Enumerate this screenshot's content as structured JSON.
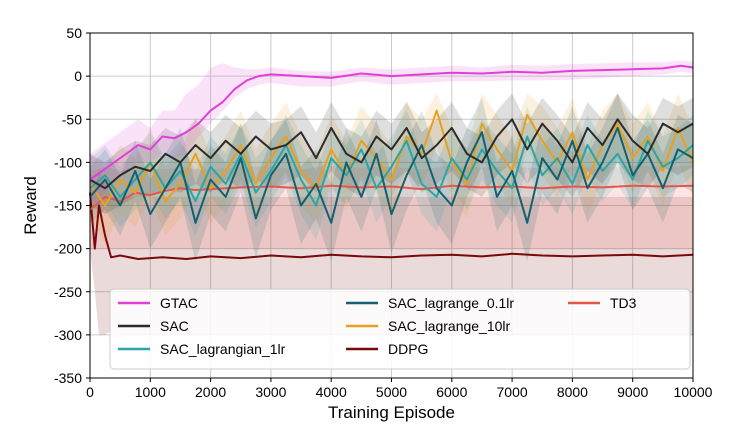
{
  "chart_data": {
    "type": "line",
    "title": "",
    "xlabel": "Training Episode",
    "ylabel": "Reward",
    "xlim": [
      0,
      10000
    ],
    "ylim": [
      -350,
      50
    ],
    "xticks": [
      0,
      1000,
      2000,
      3000,
      4000,
      5000,
      6000,
      7000,
      8000,
      9000,
      10000
    ],
    "yticks": [
      50,
      0,
      -50,
      -100,
      -150,
      -200,
      -250,
      -300,
      -350
    ],
    "grid": true,
    "legend_position": "lower-left",
    "legend_columns": 3,
    "series": [
      {
        "name": "GTAC",
        "color": "#e040d8",
        "x": [
          0,
          200,
          400,
          600,
          800,
          1000,
          1200,
          1400,
          1600,
          1800,
          2000,
          2200,
          2400,
          2600,
          2800,
          3000,
          3500,
          4000,
          4500,
          5000,
          5500,
          6000,
          6500,
          7000,
          7500,
          8000,
          8500,
          9000,
          9500,
          9800,
          10000
        ],
        "values": [
          -120,
          -110,
          -100,
          -90,
          -80,
          -85,
          -70,
          -72,
          -65,
          -55,
          -40,
          -30,
          -15,
          -5,
          0,
          2,
          0,
          -2,
          3,
          0,
          2,
          4,
          3,
          5,
          4,
          6,
          7,
          8,
          9,
          12,
          10
        ],
        "band_low": [
          -150,
          -140,
          -120,
          -110,
          -100,
          -100,
          -90,
          -95,
          -90,
          -70,
          -55,
          -40,
          -25,
          -15,
          -10,
          -8,
          -12,
          -12,
          -6,
          -10,
          -8,
          -6,
          -6,
          -5,
          -5,
          -4,
          -2,
          0,
          2,
          5,
          3
        ],
        "band_high": [
          -90,
          -80,
          -70,
          -60,
          -50,
          -60,
          -40,
          -40,
          -20,
          -10,
          10,
          15,
          10,
          8,
          8,
          10,
          6,
          5,
          10,
          8,
          10,
          12,
          10,
          13,
          12,
          14,
          15,
          16,
          16,
          18,
          17
        ]
      },
      {
        "name": "SAC",
        "color": "#2b2b2b",
        "x": [
          0,
          250,
          500,
          750,
          1000,
          1250,
          1500,
          1750,
          2000,
          2250,
          2500,
          2750,
          3000,
          3250,
          3500,
          3750,
          4000,
          4250,
          4500,
          4750,
          5000,
          5250,
          5500,
          5750,
          6000,
          6250,
          6500,
          6750,
          7000,
          7250,
          7500,
          7750,
          8000,
          8250,
          8500,
          8750,
          9000,
          9250,
          9500,
          9750,
          10000
        ],
        "values": [
          -120,
          -130,
          -115,
          -105,
          -110,
          -90,
          -100,
          -80,
          -95,
          -75,
          -90,
          -70,
          -85,
          -80,
          -65,
          -95,
          -60,
          -90,
          -100,
          -70,
          -85,
          -60,
          -95,
          -80,
          -60,
          -90,
          -100,
          -70,
          -50,
          -85,
          -55,
          -75,
          -100,
          -60,
          -80,
          -50,
          -75,
          -90,
          -55,
          -65,
          -55
        ],
        "band_low": [
          -150,
          -160,
          -150,
          -140,
          -140,
          -130,
          -135,
          -125,
          -135,
          -120,
          -130,
          -120,
          -130,
          -125,
          -115,
          -135,
          -110,
          -130,
          -140,
          -115,
          -125,
          -110,
          -135,
          -125,
          -110,
          -130,
          -140,
          -115,
          -100,
          -125,
          -105,
          -120,
          -140,
          -110,
          -125,
          -100,
          -120,
          -130,
          -105,
          -115,
          -105
        ],
        "band_high": [
          -90,
          -100,
          -85,
          -75,
          -80,
          -60,
          -70,
          -50,
          -65,
          -45,
          -60,
          -40,
          -55,
          -50,
          -35,
          -65,
          -30,
          -60,
          -70,
          -40,
          -55,
          -30,
          -65,
          -50,
          -30,
          -60,
          -70,
          -40,
          -20,
          -55,
          -25,
          -45,
          -70,
          -30,
          -50,
          -20,
          -45,
          -60,
          -25,
          -35,
          -25
        ]
      },
      {
        "name": "SAC_lagrangian_1lr",
        "color": "#2aa6a6",
        "x": [
          0,
          250,
          500,
          750,
          1000,
          1250,
          1500,
          1750,
          2000,
          2250,
          2500,
          2750,
          3000,
          3250,
          3500,
          3750,
          4000,
          4250,
          4500,
          4750,
          5000,
          5250,
          5500,
          5750,
          6000,
          6250,
          6500,
          6750,
          7000,
          7250,
          7500,
          7750,
          8000,
          8250,
          8500,
          8750,
          9000,
          9250,
          9500,
          9750,
          10000
        ],
        "values": [
          -130,
          -115,
          -140,
          -120,
          -100,
          -130,
          -110,
          -145,
          -105,
          -125,
          -90,
          -135,
          -110,
          -80,
          -120,
          -150,
          -95,
          -115,
          -85,
          -130,
          -105,
          -75,
          -125,
          -140,
          -95,
          -120,
          -85,
          -110,
          -130,
          -70,
          -115,
          -95,
          -125,
          -80,
          -110,
          -90,
          -120,
          -75,
          -105,
          -95,
          -80
        ],
        "band_low": [
          -160,
          -145,
          -175,
          -155,
          -135,
          -165,
          -145,
          -185,
          -140,
          -160,
          -125,
          -175,
          -145,
          -115,
          -160,
          -190,
          -130,
          -150,
          -120,
          -170,
          -140,
          -110,
          -160,
          -180,
          -130,
          -155,
          -120,
          -150,
          -170,
          -105,
          -150,
          -130,
          -160,
          -115,
          -145,
          -125,
          -155,
          -110,
          -140,
          -130,
          -115
        ],
        "band_high": [
          -95,
          -80,
          -105,
          -85,
          -65,
          -95,
          -75,
          -110,
          -70,
          -90,
          -55,
          -95,
          -75,
          -45,
          -80,
          -110,
          -60,
          -80,
          -50,
          -90,
          -70,
          -40,
          -90,
          -100,
          -60,
          -85,
          -50,
          -70,
          -90,
          -35,
          -80,
          -60,
          -90,
          -45,
          -75,
          -55,
          -85,
          -40,
          -70,
          -60,
          -45
        ]
      },
      {
        "name": "SAC_lagrange_0.1lr",
        "color": "#14606e",
        "x": [
          0,
          250,
          500,
          750,
          1000,
          1250,
          1500,
          1750,
          2000,
          2250,
          2500,
          2750,
          3000,
          3250,
          3500,
          3750,
          4000,
          4250,
          4500,
          4750,
          5000,
          5250,
          5500,
          5750,
          6000,
          6250,
          6500,
          6750,
          7000,
          7250,
          7500,
          7750,
          8000,
          8250,
          8500,
          8750,
          9000,
          9250,
          9500,
          9750,
          10000
        ],
        "values": [
          -140,
          -120,
          -150,
          -110,
          -160,
          -130,
          -100,
          -170,
          -120,
          -140,
          -95,
          -165,
          -115,
          -90,
          -150,
          -125,
          -170,
          -100,
          -140,
          -90,
          -160,
          -115,
          -80,
          -130,
          -150,
          -100,
          -65,
          -140,
          -110,
          -170,
          -95,
          -120,
          -75,
          -130,
          -100,
          -60,
          -115,
          -90,
          -130,
          -85,
          -95
        ],
        "band_low": [
          -170,
          -155,
          -185,
          -145,
          -200,
          -170,
          -140,
          -215,
          -160,
          -180,
          -135,
          -210,
          -155,
          -130,
          -195,
          -165,
          -215,
          -140,
          -180,
          -130,
          -205,
          -155,
          -120,
          -170,
          -195,
          -140,
          -105,
          -180,
          -150,
          -215,
          -135,
          -160,
          -115,
          -170,
          -140,
          -100,
          -155,
          -130,
          -170,
          -125,
          -135
        ],
        "band_high": [
          -105,
          -85,
          -115,
          -75,
          -120,
          -90,
          -60,
          -125,
          -80,
          -100,
          -55,
          -120,
          -75,
          -50,
          -105,
          -85,
          -125,
          -60,
          -100,
          -50,
          -115,
          -75,
          -40,
          -90,
          -105,
          -60,
          -25,
          -100,
          -70,
          -125,
          -55,
          -80,
          -35,
          -90,
          -60,
          -20,
          -75,
          -50,
          -90,
          -45,
          -55
        ]
      },
      {
        "name": "SAC_lagrange_10lr",
        "color": "#e8a020",
        "x": [
          0,
          250,
          500,
          750,
          1000,
          1250,
          1500,
          1750,
          2000,
          2250,
          2500,
          2750,
          3000,
          3250,
          3500,
          3750,
          4000,
          4250,
          4500,
          4750,
          5000,
          5250,
          5500,
          5750,
          6000,
          6250,
          6500,
          6750,
          7000,
          7250,
          7500,
          7750,
          8000,
          8250,
          8500,
          8750,
          9000,
          9250,
          9500,
          9750,
          10000
        ],
        "values": [
          -125,
          -150,
          -120,
          -135,
          -100,
          -145,
          -125,
          -90,
          -130,
          -110,
          -80,
          -125,
          -95,
          -70,
          -110,
          -130,
          -85,
          -115,
          -75,
          -95,
          -120,
          -70,
          -90,
          -40,
          -100,
          -125,
          -55,
          -85,
          -110,
          -45,
          -75,
          -100,
          -65,
          -120,
          -80,
          -55,
          -95,
          -70,
          -110,
          -60,
          -100
        ],
        "band_low": [
          -160,
          -195,
          -160,
          -175,
          -140,
          -185,
          -165,
          -130,
          -170,
          -150,
          -120,
          -165,
          -135,
          -110,
          -150,
          -170,
          -125,
          -155,
          -115,
          -135,
          -160,
          -110,
          -130,
          -80,
          -140,
          -165,
          -95,
          -125,
          -150,
          -85,
          -115,
          -140,
          -105,
          -160,
          -120,
          -95,
          -135,
          -110,
          -150,
          -100,
          -140
        ],
        "band_high": [
          -90,
          -105,
          -80,
          -95,
          -60,
          -105,
          -85,
          -50,
          -90,
          -70,
          -40,
          -85,
          -55,
          -30,
          -70,
          -90,
          -45,
          -75,
          -35,
          -55,
          -80,
          -30,
          -50,
          -20,
          -60,
          -85,
          -20,
          -45,
          -70,
          -20,
          -35,
          -60,
          -25,
          -80,
          -40,
          -20,
          -55,
          -30,
          -70,
          -20,
          -60
        ]
      },
      {
        "name": "DDPG",
        "color": "#7a0a0a",
        "x": [
          0,
          80,
          150,
          250,
          350,
          500,
          800,
          1200,
          1600,
          2000,
          2500,
          3000,
          3500,
          4000,
          4500,
          5000,
          5500,
          6000,
          6500,
          7000,
          7500,
          8000,
          8500,
          9000,
          9500,
          10000
        ],
        "values": [
          -135,
          -200,
          -150,
          -185,
          -210,
          -208,
          -212,
          -210,
          -212,
          -209,
          -211,
          -208,
          -210,
          -207,
          -209,
          -210,
          -208,
          -207,
          -209,
          -206,
          -208,
          -209,
          -208,
          -207,
          -209,
          -207
        ],
        "band_low": [
          -200,
          -250,
          -300,
          -300,
          -295,
          -300,
          -300,
          -300,
          -300,
          -300,
          -300,
          -300,
          -300,
          -300,
          -300,
          -300,
          -300,
          -300,
          -300,
          -300,
          -300,
          -300,
          -300,
          -300,
          -300,
          -300
        ],
        "band_high": [
          -110,
          -130,
          -110,
          -120,
          -140,
          -140,
          -140,
          -140,
          -140,
          -140,
          -140,
          -140,
          -140,
          -140,
          -140,
          -140,
          -140,
          -140,
          -140,
          -140,
          -140,
          -140,
          -140,
          -140,
          -140,
          -140
        ]
      },
      {
        "name": "TD3",
        "color": "#e8564a",
        "x": [
          0,
          250,
          500,
          750,
          1000,
          1250,
          1500,
          1750,
          2000,
          2500,
          3000,
          3500,
          4000,
          4500,
          5000,
          5500,
          6000,
          6500,
          7000,
          7500,
          8000,
          8500,
          9000,
          9500,
          10000
        ],
        "values": [
          -155,
          -140,
          -145,
          -135,
          -138,
          -133,
          -130,
          -132,
          -131,
          -129,
          -128,
          -130,
          -127,
          -129,
          -128,
          -131,
          -127,
          -129,
          -128,
          -130,
          -128,
          -129,
          -127,
          -128,
          -127
        ],
        "band_low": [
          -200,
          -200,
          -200,
          -200,
          -200,
          -200,
          -200,
          -200,
          -200,
          -200,
          -200,
          -200,
          -200,
          -200,
          -200,
          -200,
          -200,
          -200,
          -200,
          -200,
          -200,
          -200,
          -200,
          -200,
          -200
        ],
        "band_high": [
          -110,
          -105,
          -110,
          -105,
          -108,
          -108,
          -105,
          -108,
          -108,
          -105,
          -105,
          -108,
          -104,
          -106,
          -105,
          -108,
          -104,
          -106,
          -105,
          -107,
          -105,
          -106,
          -104,
          -105,
          -104
        ]
      }
    ]
  }
}
